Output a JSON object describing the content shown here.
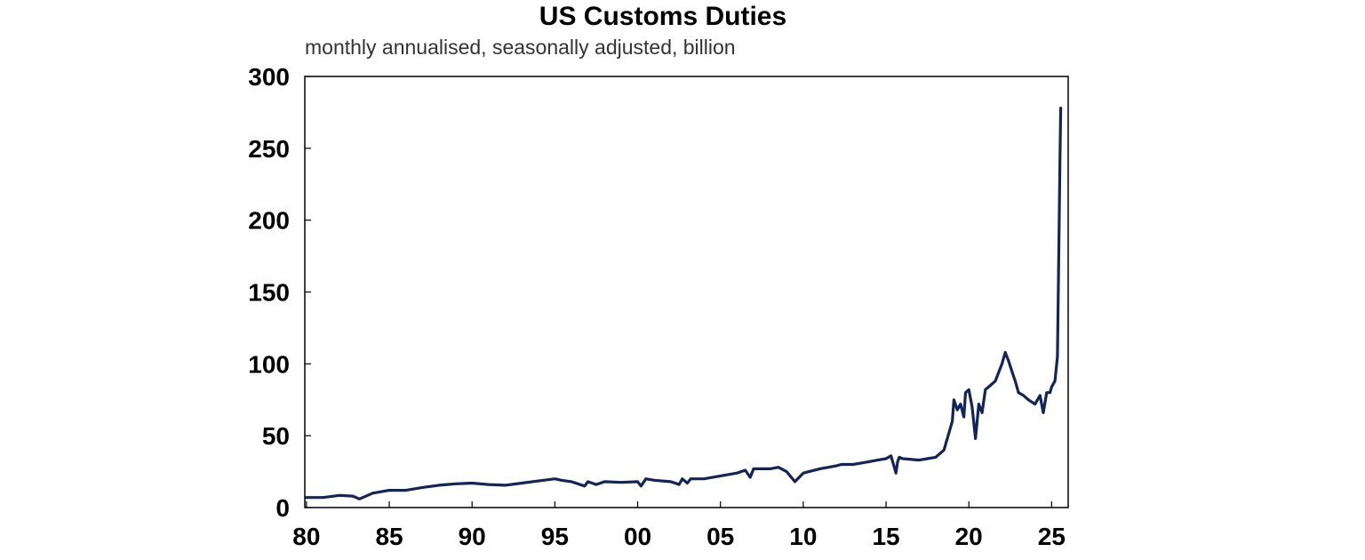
{
  "chart_data": {
    "type": "line",
    "title": "US Customs Duties",
    "subtitle": "monthly annualised, seasonally adjusted, billion",
    "xlabel": "",
    "ylabel": "",
    "ylim": [
      0,
      300
    ],
    "xlim": [
      1979.9,
      2026.0
    ],
    "yticks": [
      0,
      50,
      100,
      150,
      200,
      250,
      300
    ],
    "ytick_labels": [
      "0",
      "50",
      "100",
      "150",
      "200",
      "250",
      "300"
    ],
    "xticks": [
      1980,
      1985,
      1990,
      1995,
      2000,
      2005,
      2010,
      2015,
      2020,
      2025
    ],
    "xtick_labels": [
      "80",
      "85",
      "90",
      "95",
      "00",
      "05",
      "10",
      "15",
      "20",
      "25"
    ],
    "grid": false,
    "line_color": "#13245a",
    "series": [
      {
        "name": "US Customs Duties",
        "x": [
          1980.0,
          1981.0,
          1982.0,
          1982.8,
          1983.2,
          1984.0,
          1985.0,
          1986.0,
          1987.0,
          1988.0,
          1989.0,
          1990.0,
          1991.0,
          1992.0,
          1993.0,
          1994.0,
          1995.0,
          1995.4,
          1996.0,
          1996.8,
          1997.0,
          1997.5,
          1998.0,
          1999.0,
          2000.0,
          2000.2,
          2000.5,
          2001.0,
          2002.0,
          2002.5,
          2002.7,
          2003.0,
          2003.2,
          2004.0,
          2005.0,
          2006.0,
          2006.5,
          2006.8,
          2007.0,
          2008.0,
          2008.5,
          2009.0,
          2009.5,
          2010.0,
          2011.0,
          2012.0,
          2012.3,
          2013.0,
          2013.5,
          2014.0,
          2014.5,
          2015.0,
          2015.3,
          2015.6,
          2015.7,
          2015.8,
          2016.0,
          2017.0,
          2017.5,
          2018.0,
          2018.5,
          2019.0,
          2019.1,
          2019.3,
          2019.5,
          2019.7,
          2019.8,
          2020.0,
          2020.2,
          2020.4,
          2020.6,
          2020.8,
          2021.0,
          2021.3,
          2021.6,
          2022.0,
          2022.2,
          2022.4,
          2022.6,
          2022.8,
          2023.0,
          2023.3,
          2023.6,
          2024.0,
          2024.3,
          2024.5,
          2024.7,
          2024.9,
          2025.0,
          2025.2,
          2025.35,
          2025.45,
          2025.5,
          2025.55
        ],
        "values": [
          7,
          7,
          8.5,
          8,
          6,
          10,
          12,
          12,
          14,
          15.5,
          16.5,
          17,
          16,
          15.5,
          17,
          18.5,
          20,
          19,
          18,
          15,
          18,
          16,
          18,
          17.5,
          18,
          15,
          20,
          19,
          18,
          16,
          20,
          17,
          20,
          20,
          22,
          24,
          26,
          21,
          27,
          27,
          28,
          25,
          18,
          24,
          27,
          29,
          30,
          30,
          31,
          32,
          33,
          34,
          36,
          24,
          32,
          35,
          34,
          33,
          34,
          35,
          40,
          60,
          75,
          68,
          72,
          63,
          80,
          82,
          70,
          48,
          72,
          66,
          82,
          85,
          88,
          100,
          108,
          102,
          95,
          88,
          80,
          78,
          75,
          72,
          78,
          66,
          80,
          80,
          84,
          88,
          105,
          195,
          240,
          278
        ]
      }
    ]
  }
}
